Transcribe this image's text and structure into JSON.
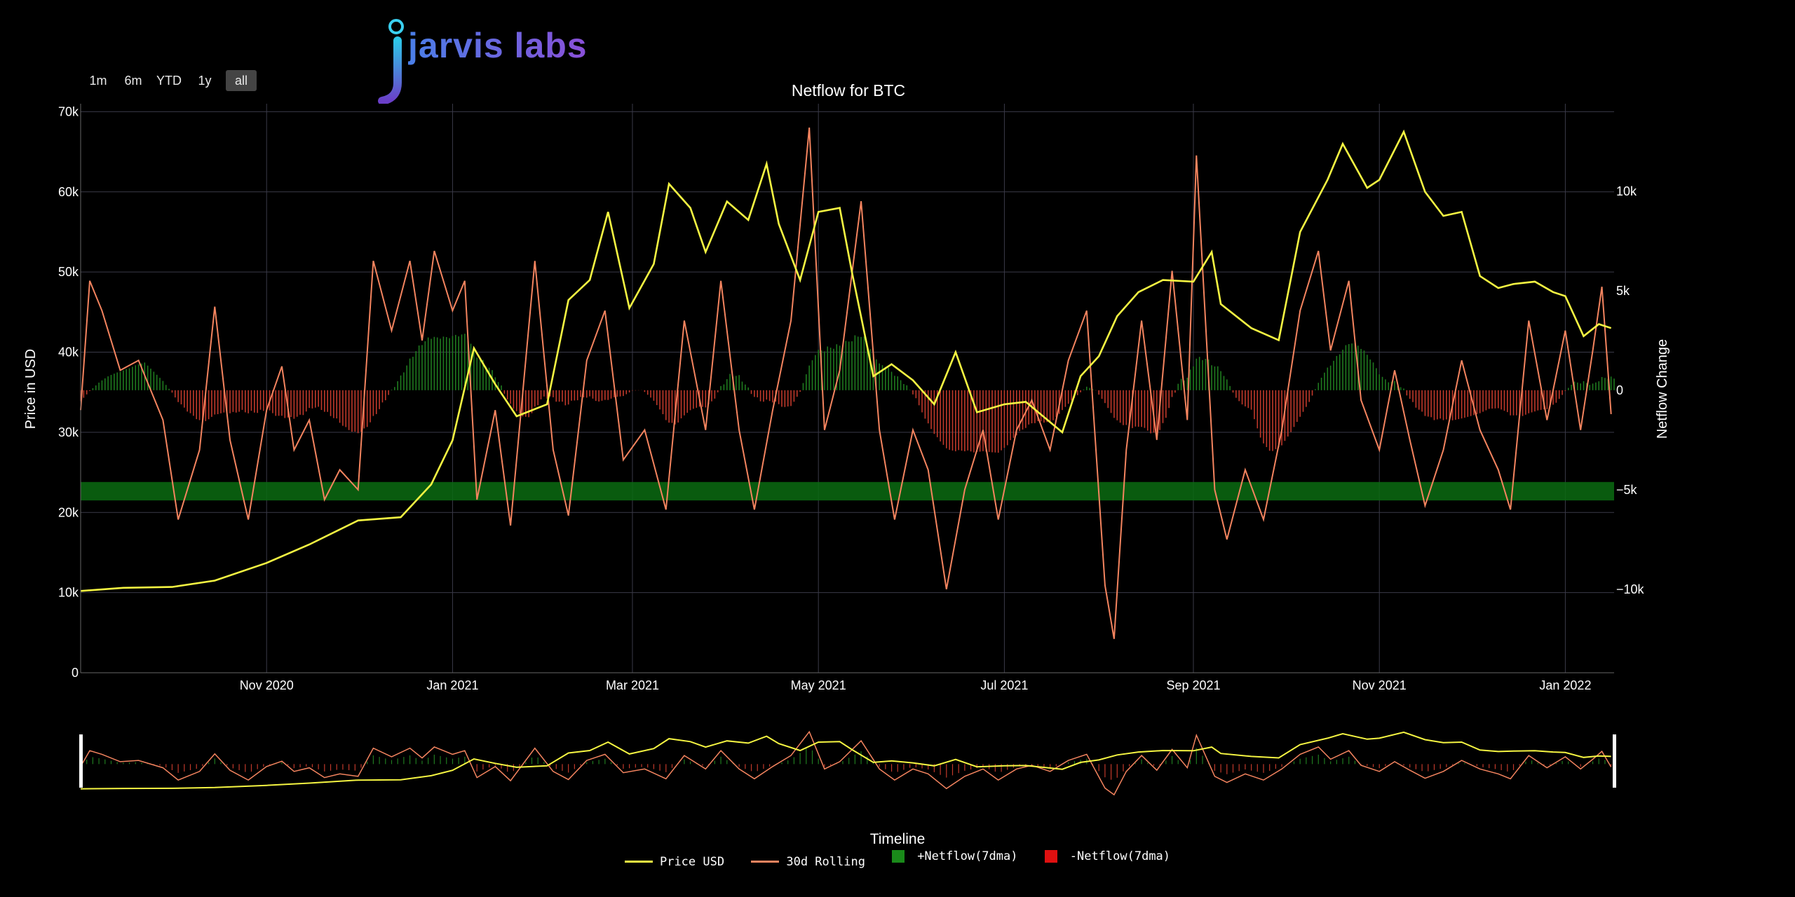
{
  "range_selector": [
    "1m",
    "6m",
    "YTD",
    "1y",
    "all"
  ],
  "range_active": "all",
  "logo": {
    "text": "jarvis labs"
  },
  "colors": {
    "background": "#000000",
    "price": "#f5f542",
    "rolling": "#f4845f",
    "netflow_pos": "#1f7a1f",
    "netflow_neg": "#c0392b",
    "band": "#0b6b12",
    "grid": "#3a3a48"
  },
  "chart_data": {
    "type": "line",
    "title": "Netflow for BTC",
    "ylabel_left": "Price in USD",
    "ylabel_right": "Netflow Change",
    "xlabel_rangeslider": "Timeline",
    "x_ticks": [
      "Nov 2020",
      "Jan 2021",
      "Mar 2021",
      "May 2021",
      "Jul 2021",
      "Sep 2021",
      "Nov 2021",
      "Jan 2022"
    ],
    "y_left_ticks": [
      "0",
      "10k",
      "20k",
      "30k",
      "40k",
      "50k",
      "60k",
      "70k"
    ],
    "y_left_range": [
      0,
      71000
    ],
    "y_right_ticks": [
      "10k",
      "5k",
      "0",
      "−5k",
      "−10k"
    ],
    "y_right_range": [
      -14200,
      14400
    ],
    "grid": true,
    "legend_position": "bottom",
    "support_band_usd": [
      21500,
      23800
    ],
    "series": [
      {
        "name": "Price USD",
        "kind": "line",
        "points": [
          [
            "2020-09-01",
            10200
          ],
          [
            "2020-09-15",
            10600
          ],
          [
            "2020-10-01",
            10700
          ],
          [
            "2020-10-15",
            11500
          ],
          [
            "2020-11-01",
            13700
          ],
          [
            "2020-11-15",
            16000
          ],
          [
            "2020-12-01",
            19000
          ],
          [
            "2020-12-15",
            19400
          ],
          [
            "2020-12-25",
            23500
          ],
          [
            "2021-01-01",
            29000
          ],
          [
            "2021-01-08",
            40500
          ],
          [
            "2021-01-15",
            36000
          ],
          [
            "2021-01-22",
            32000
          ],
          [
            "2021-02-01",
            33500
          ],
          [
            "2021-02-08",
            46500
          ],
          [
            "2021-02-15",
            49000
          ],
          [
            "2021-02-21",
            57500
          ],
          [
            "2021-02-28",
            45500
          ],
          [
            "2021-03-08",
            51000
          ],
          [
            "2021-03-13",
            61000
          ],
          [
            "2021-03-20",
            58000
          ],
          [
            "2021-03-25",
            52500
          ],
          [
            "2021-04-01",
            58800
          ],
          [
            "2021-04-08",
            56500
          ],
          [
            "2021-04-14",
            63500
          ],
          [
            "2021-04-18",
            56000
          ],
          [
            "2021-04-25",
            49000
          ],
          [
            "2021-05-01",
            57500
          ],
          [
            "2021-05-08",
            58000
          ],
          [
            "2021-05-12",
            50000
          ],
          [
            "2021-05-19",
            37000
          ],
          [
            "2021-05-25",
            38500
          ],
          [
            "2021-06-01",
            36500
          ],
          [
            "2021-06-08",
            33500
          ],
          [
            "2021-06-15",
            40000
          ],
          [
            "2021-06-22",
            32500
          ],
          [
            "2021-07-01",
            33500
          ],
          [
            "2021-07-08",
            33800
          ],
          [
            "2021-07-20",
            30000
          ],
          [
            "2021-07-26",
            37000
          ],
          [
            "2021-08-01",
            39500
          ],
          [
            "2021-08-07",
            44500
          ],
          [
            "2021-08-14",
            47500
          ],
          [
            "2021-08-22",
            49000
          ],
          [
            "2021-09-01",
            48800
          ],
          [
            "2021-09-07",
            52500
          ],
          [
            "2021-09-10",
            46000
          ],
          [
            "2021-09-20",
            43000
          ],
          [
            "2021-09-29",
            41500
          ],
          [
            "2021-10-06",
            55000
          ],
          [
            "2021-10-15",
            61500
          ],
          [
            "2021-10-20",
            66000
          ],
          [
            "2021-10-28",
            60500
          ],
          [
            "2021-11-01",
            61500
          ],
          [
            "2021-11-09",
            67500
          ],
          [
            "2021-11-16",
            60000
          ],
          [
            "2021-11-22",
            57000
          ],
          [
            "2021-11-28",
            57500
          ],
          [
            "2021-12-04",
            49500
          ],
          [
            "2021-12-10",
            48000
          ],
          [
            "2021-12-15",
            48500
          ],
          [
            "2021-12-22",
            48800
          ],
          [
            "2021-12-28",
            47500
          ],
          [
            "2022-01-01",
            47000
          ],
          [
            "2022-01-07",
            42000
          ],
          [
            "2022-01-12",
            43500
          ],
          [
            "2022-01-16",
            43000
          ]
        ]
      },
      {
        "name": "30d Rolling",
        "kind": "line",
        "points": [
          [
            "2020-09-01",
            -1000
          ],
          [
            "2020-09-04",
            5500
          ],
          [
            "2020-09-08",
            4000
          ],
          [
            "2020-09-14",
            1000
          ],
          [
            "2020-09-20",
            1500
          ],
          [
            "2020-09-28",
            -1500
          ],
          [
            "2020-10-03",
            -6500
          ],
          [
            "2020-10-10",
            -3000
          ],
          [
            "2020-10-15",
            4200
          ],
          [
            "2020-10-20",
            -2500
          ],
          [
            "2020-10-26",
            -6500
          ],
          [
            "2020-11-01",
            -1000
          ],
          [
            "2020-11-06",
            1200
          ],
          [
            "2020-11-10",
            -3000
          ],
          [
            "2020-11-15",
            -1500
          ],
          [
            "2020-11-20",
            -5500
          ],
          [
            "2020-11-25",
            -4000
          ],
          [
            "2020-12-01",
            -5000
          ],
          [
            "2020-12-06",
            6500
          ],
          [
            "2020-12-12",
            3000
          ],
          [
            "2020-12-18",
            6500
          ],
          [
            "2020-12-22",
            2500
          ],
          [
            "2020-12-26",
            7000
          ],
          [
            "2021-01-01",
            4000
          ],
          [
            "2021-01-05",
            5500
          ],
          [
            "2021-01-09",
            -5500
          ],
          [
            "2021-01-15",
            -1000
          ],
          [
            "2021-01-20",
            -6800
          ],
          [
            "2021-01-28",
            6500
          ],
          [
            "2021-02-03",
            -3000
          ],
          [
            "2021-02-08",
            -6300
          ],
          [
            "2021-02-14",
            1500
          ],
          [
            "2021-02-20",
            4000
          ],
          [
            "2021-02-26",
            -3500
          ],
          [
            "2021-03-05",
            -2000
          ],
          [
            "2021-03-12",
            -6000
          ],
          [
            "2021-03-18",
            3500
          ],
          [
            "2021-03-25",
            -2000
          ],
          [
            "2021-03-30",
            5500
          ],
          [
            "2021-04-05",
            -2000
          ],
          [
            "2021-04-10",
            -6000
          ],
          [
            "2021-04-16",
            -1000
          ],
          [
            "2021-04-22",
            3500
          ],
          [
            "2021-04-28",
            13200
          ],
          [
            "2021-05-03",
            -2000
          ],
          [
            "2021-05-08",
            1000
          ],
          [
            "2021-05-15",
            9500
          ],
          [
            "2021-05-21",
            -2000
          ],
          [
            "2021-05-26",
            -6500
          ],
          [
            "2021-06-01",
            -2000
          ],
          [
            "2021-06-06",
            -4000
          ],
          [
            "2021-06-12",
            -10000
          ],
          [
            "2021-06-18",
            -5000
          ],
          [
            "2021-06-24",
            -2000
          ],
          [
            "2021-06-29",
            -6500
          ],
          [
            "2021-07-05",
            -2000
          ],
          [
            "2021-07-10",
            -500
          ],
          [
            "2021-07-16",
            -3000
          ],
          [
            "2021-07-22",
            1500
          ],
          [
            "2021-07-28",
            4000
          ],
          [
            "2021-08-03",
            -9800
          ],
          [
            "2021-08-06",
            -12500
          ],
          [
            "2021-08-10",
            -3000
          ],
          [
            "2021-08-15",
            3500
          ],
          [
            "2021-08-20",
            -2500
          ],
          [
            "2021-08-25",
            6000
          ],
          [
            "2021-08-30",
            -1500
          ],
          [
            "2021-09-02",
            11800
          ],
          [
            "2021-09-08",
            -5000
          ],
          [
            "2021-09-12",
            -7500
          ],
          [
            "2021-09-18",
            -4000
          ],
          [
            "2021-09-24",
            -6500
          ],
          [
            "2021-09-30",
            -2000
          ],
          [
            "2021-10-06",
            4000
          ],
          [
            "2021-10-12",
            7000
          ],
          [
            "2021-10-16",
            2000
          ],
          [
            "2021-10-22",
            5500
          ],
          [
            "2021-10-26",
            -500
          ],
          [
            "2021-11-01",
            -3000
          ],
          [
            "2021-11-06",
            1000
          ],
          [
            "2021-11-11",
            -2500
          ],
          [
            "2021-11-16",
            -5800
          ],
          [
            "2021-11-22",
            -3000
          ],
          [
            "2021-11-28",
            1500
          ],
          [
            "2021-12-04",
            -2000
          ],
          [
            "2021-12-10",
            -4000
          ],
          [
            "2021-12-14",
            -6000
          ],
          [
            "2021-12-20",
            3500
          ],
          [
            "2021-12-26",
            -1500
          ],
          [
            "2022-01-01",
            3000
          ],
          [
            "2022-01-06",
            -2000
          ],
          [
            "2022-01-10",
            2000
          ],
          [
            "2022-01-13",
            5200
          ],
          [
            "2022-01-16",
            -1200
          ]
        ]
      },
      {
        "name": "+Netflow(7dma)",
        "kind": "bar"
      },
      {
        "name": "-Netflow(7dma)",
        "kind": "bar"
      }
    ]
  }
}
